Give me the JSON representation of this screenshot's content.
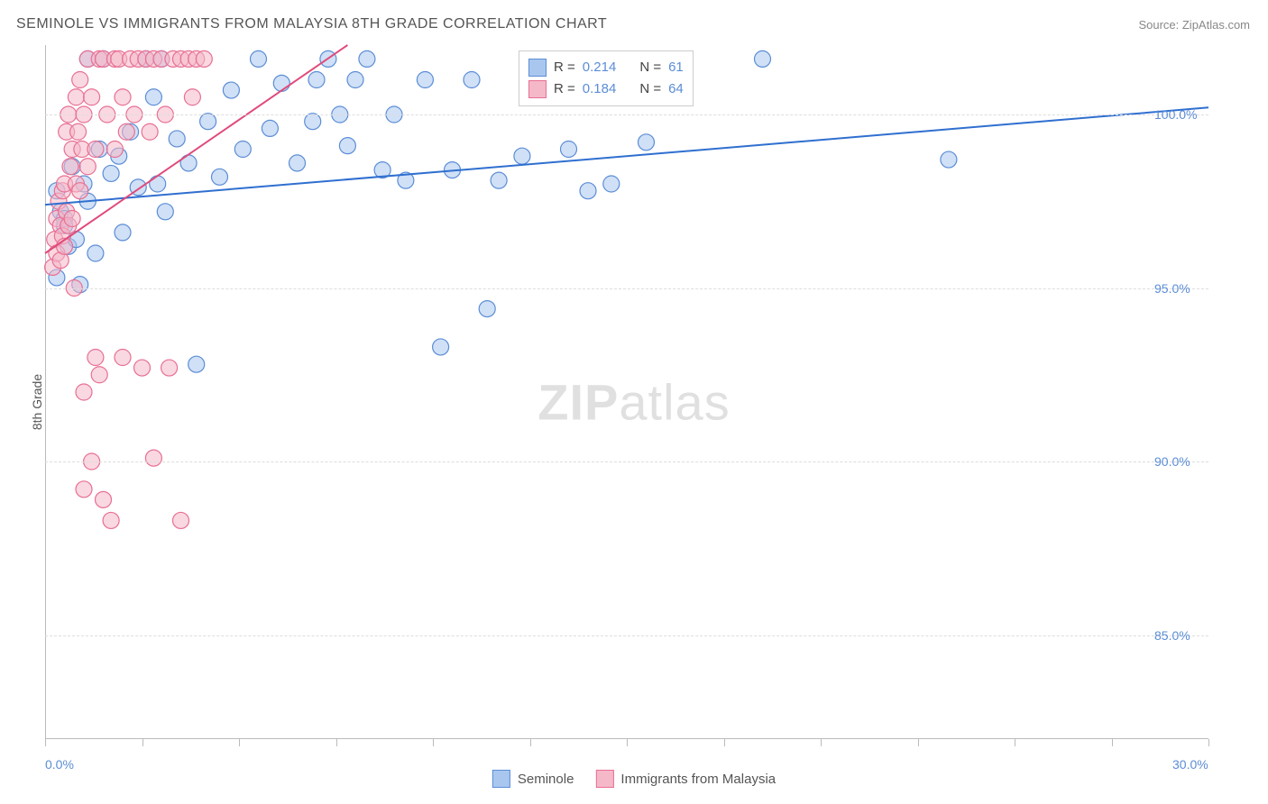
{
  "title": "SEMINOLE VS IMMIGRANTS FROM MALAYSIA 8TH GRADE CORRELATION CHART",
  "source": "Source: ZipAtlas.com",
  "watermark": {
    "bold": "ZIP",
    "light": "atlas"
  },
  "ylabel": "8th Grade",
  "chart": {
    "type": "scatter",
    "xlim": [
      0,
      30
    ],
    "ylim": [
      82,
      102
    ],
    "xticks": [
      0,
      2.5,
      5,
      7.5,
      10,
      12.5,
      15,
      17.5,
      20,
      22.5,
      25,
      27.5,
      30
    ],
    "xtick_labels": {
      "0": "0.0%",
      "30": "30.0%"
    },
    "yticks": [
      85,
      90,
      95,
      100
    ],
    "ytick_labels": {
      "85": "85.0%",
      "90": "90.0%",
      "95": "95.0%",
      "100": "100.0%"
    },
    "grid_color": "#dddddd",
    "background": "#ffffff",
    "axis_color": "#bbbbbb",
    "tick_color": "#5b8dd6",
    "marker_radius": 9,
    "marker_stroke_width": 1.2,
    "series": [
      {
        "name": "Seminole",
        "color_fill": "#a9c7ee",
        "color_stroke": "#5b8dd6",
        "fill_opacity": 0.55,
        "R": "0.214",
        "N": "61",
        "regression": {
          "x1": 0,
          "y1": 97.4,
          "x2": 30,
          "y2": 100.2,
          "color": "#2f6fd0",
          "width": 2
        },
        "points": [
          [
            0.3,
            95.3
          ],
          [
            0.4,
            97.2
          ],
          [
            0.5,
            97.0
          ],
          [
            0.6,
            96.2
          ],
          [
            0.7,
            98.5
          ],
          [
            0.8,
            96.4
          ],
          [
            0.9,
            95.1
          ],
          [
            1.0,
            98.0
          ],
          [
            1.1,
            97.5
          ],
          [
            1.1,
            101.6
          ],
          [
            1.3,
            96.0
          ],
          [
            1.4,
            99.0
          ],
          [
            1.5,
            101.6
          ],
          [
            1.7,
            98.3
          ],
          [
            1.9,
            98.8
          ],
          [
            2.0,
            96.6
          ],
          [
            2.2,
            99.5
          ],
          [
            2.4,
            97.9
          ],
          [
            2.6,
            101.6
          ],
          [
            2.8,
            100.5
          ],
          [
            2.9,
            98.0
          ],
          [
            3.0,
            101.6
          ],
          [
            3.1,
            97.2
          ],
          [
            3.4,
            99.3
          ],
          [
            3.7,
            98.6
          ],
          [
            3.9,
            92.8
          ],
          [
            4.2,
            99.8
          ],
          [
            4.5,
            98.2
          ],
          [
            4.8,
            100.7
          ],
          [
            5.1,
            99.0
          ],
          [
            5.5,
            101.6
          ],
          [
            5.8,
            99.6
          ],
          [
            6.1,
            100.9
          ],
          [
            6.5,
            98.6
          ],
          [
            6.9,
            99.8
          ],
          [
            7.0,
            101.0
          ],
          [
            7.3,
            101.6
          ],
          [
            7.6,
            100.0
          ],
          [
            7.8,
            99.1
          ],
          [
            8.0,
            101.0
          ],
          [
            8.3,
            101.6
          ],
          [
            8.7,
            98.4
          ],
          [
            9.0,
            100.0
          ],
          [
            9.3,
            98.1
          ],
          [
            9.8,
            101.0
          ],
          [
            10.2,
            93.3
          ],
          [
            10.5,
            98.4
          ],
          [
            11.0,
            101.0
          ],
          [
            11.4,
            94.4
          ],
          [
            11.7,
            98.1
          ],
          [
            12.3,
            98.8
          ],
          [
            12.6,
            101.0
          ],
          [
            13.0,
            101.0
          ],
          [
            13.5,
            99.0
          ],
          [
            14.0,
            97.8
          ],
          [
            14.6,
            98.0
          ],
          [
            15.5,
            99.2
          ],
          [
            18.5,
            101.6
          ],
          [
            23.3,
            98.7
          ],
          [
            0.5,
            96.8
          ],
          [
            0.3,
            97.8
          ]
        ]
      },
      {
        "name": "Immigrants from Malaysia",
        "color_fill": "#f4b8c9",
        "color_stroke": "#e86f93",
        "fill_opacity": 0.55,
        "R": "0.184",
        "N": "64",
        "regression": {
          "x1": 0,
          "y1": 96.0,
          "x2": 7.8,
          "y2": 102.0,
          "color": "#e04a7a",
          "width": 2
        },
        "points": [
          [
            0.2,
            95.6
          ],
          [
            0.25,
            96.4
          ],
          [
            0.3,
            97.0
          ],
          [
            0.3,
            96.0
          ],
          [
            0.35,
            97.5
          ],
          [
            0.4,
            96.8
          ],
          [
            0.4,
            95.8
          ],
          [
            0.45,
            96.5
          ],
          [
            0.45,
            97.8
          ],
          [
            0.5,
            96.2
          ],
          [
            0.5,
            98.0
          ],
          [
            0.55,
            97.2
          ],
          [
            0.55,
            99.5
          ],
          [
            0.6,
            96.8
          ],
          [
            0.6,
            100.0
          ],
          [
            0.65,
            98.5
          ],
          [
            0.7,
            97.0
          ],
          [
            0.7,
            99.0
          ],
          [
            0.75,
            95.0
          ],
          [
            0.8,
            100.5
          ],
          [
            0.8,
            98.0
          ],
          [
            0.85,
            99.5
          ],
          [
            0.9,
            101.0
          ],
          [
            0.9,
            97.8
          ],
          [
            0.95,
            99.0
          ],
          [
            1.0,
            100.0
          ],
          [
            1.0,
            92.0
          ],
          [
            1.1,
            101.6
          ],
          [
            1.1,
            98.5
          ],
          [
            1.2,
            100.5
          ],
          [
            1.2,
            90.0
          ],
          [
            1.3,
            99.0
          ],
          [
            1.3,
            93.0
          ],
          [
            1.4,
            101.6
          ],
          [
            1.4,
            92.5
          ],
          [
            1.5,
            101.6
          ],
          [
            1.5,
            88.9
          ],
          [
            1.6,
            100.0
          ],
          [
            1.7,
            88.3
          ],
          [
            1.8,
            101.6
          ],
          [
            1.8,
            99.0
          ],
          [
            1.9,
            101.6
          ],
          [
            2.0,
            93.0
          ],
          [
            2.0,
            100.5
          ],
          [
            2.1,
            99.5
          ],
          [
            2.2,
            101.6
          ],
          [
            2.3,
            100.0
          ],
          [
            2.4,
            101.6
          ],
          [
            2.5,
            92.7
          ],
          [
            2.6,
            101.6
          ],
          [
            2.7,
            99.5
          ],
          [
            2.8,
            101.6
          ],
          [
            2.8,
            90.1
          ],
          [
            3.0,
            101.6
          ],
          [
            3.1,
            100.0
          ],
          [
            3.2,
            92.7
          ],
          [
            3.3,
            101.6
          ],
          [
            3.5,
            88.3
          ],
          [
            3.5,
            101.6
          ],
          [
            3.7,
            101.6
          ],
          [
            3.8,
            100.5
          ],
          [
            3.9,
            101.6
          ],
          [
            4.1,
            101.6
          ],
          [
            1.0,
            89.2
          ]
        ]
      }
    ]
  },
  "legend_top": {
    "rows": [
      {
        "swatch_fill": "#a9c7ee",
        "swatch_stroke": "#5b8dd6",
        "r_label": "R = ",
        "r_val": "0.214",
        "n_label": "N = ",
        "n_val": "61"
      },
      {
        "swatch_fill": "#f4b8c9",
        "swatch_stroke": "#e86f93",
        "r_label": "R = ",
        "r_val": "0.184",
        "n_label": "N = ",
        "n_val": "64"
      }
    ]
  },
  "legend_bottom": [
    {
      "swatch_fill": "#a9c7ee",
      "swatch_stroke": "#5b8dd6",
      "label": "Seminole"
    },
    {
      "swatch_fill": "#f4b8c9",
      "swatch_stroke": "#e86f93",
      "label": "Immigrants from Malaysia"
    }
  ]
}
